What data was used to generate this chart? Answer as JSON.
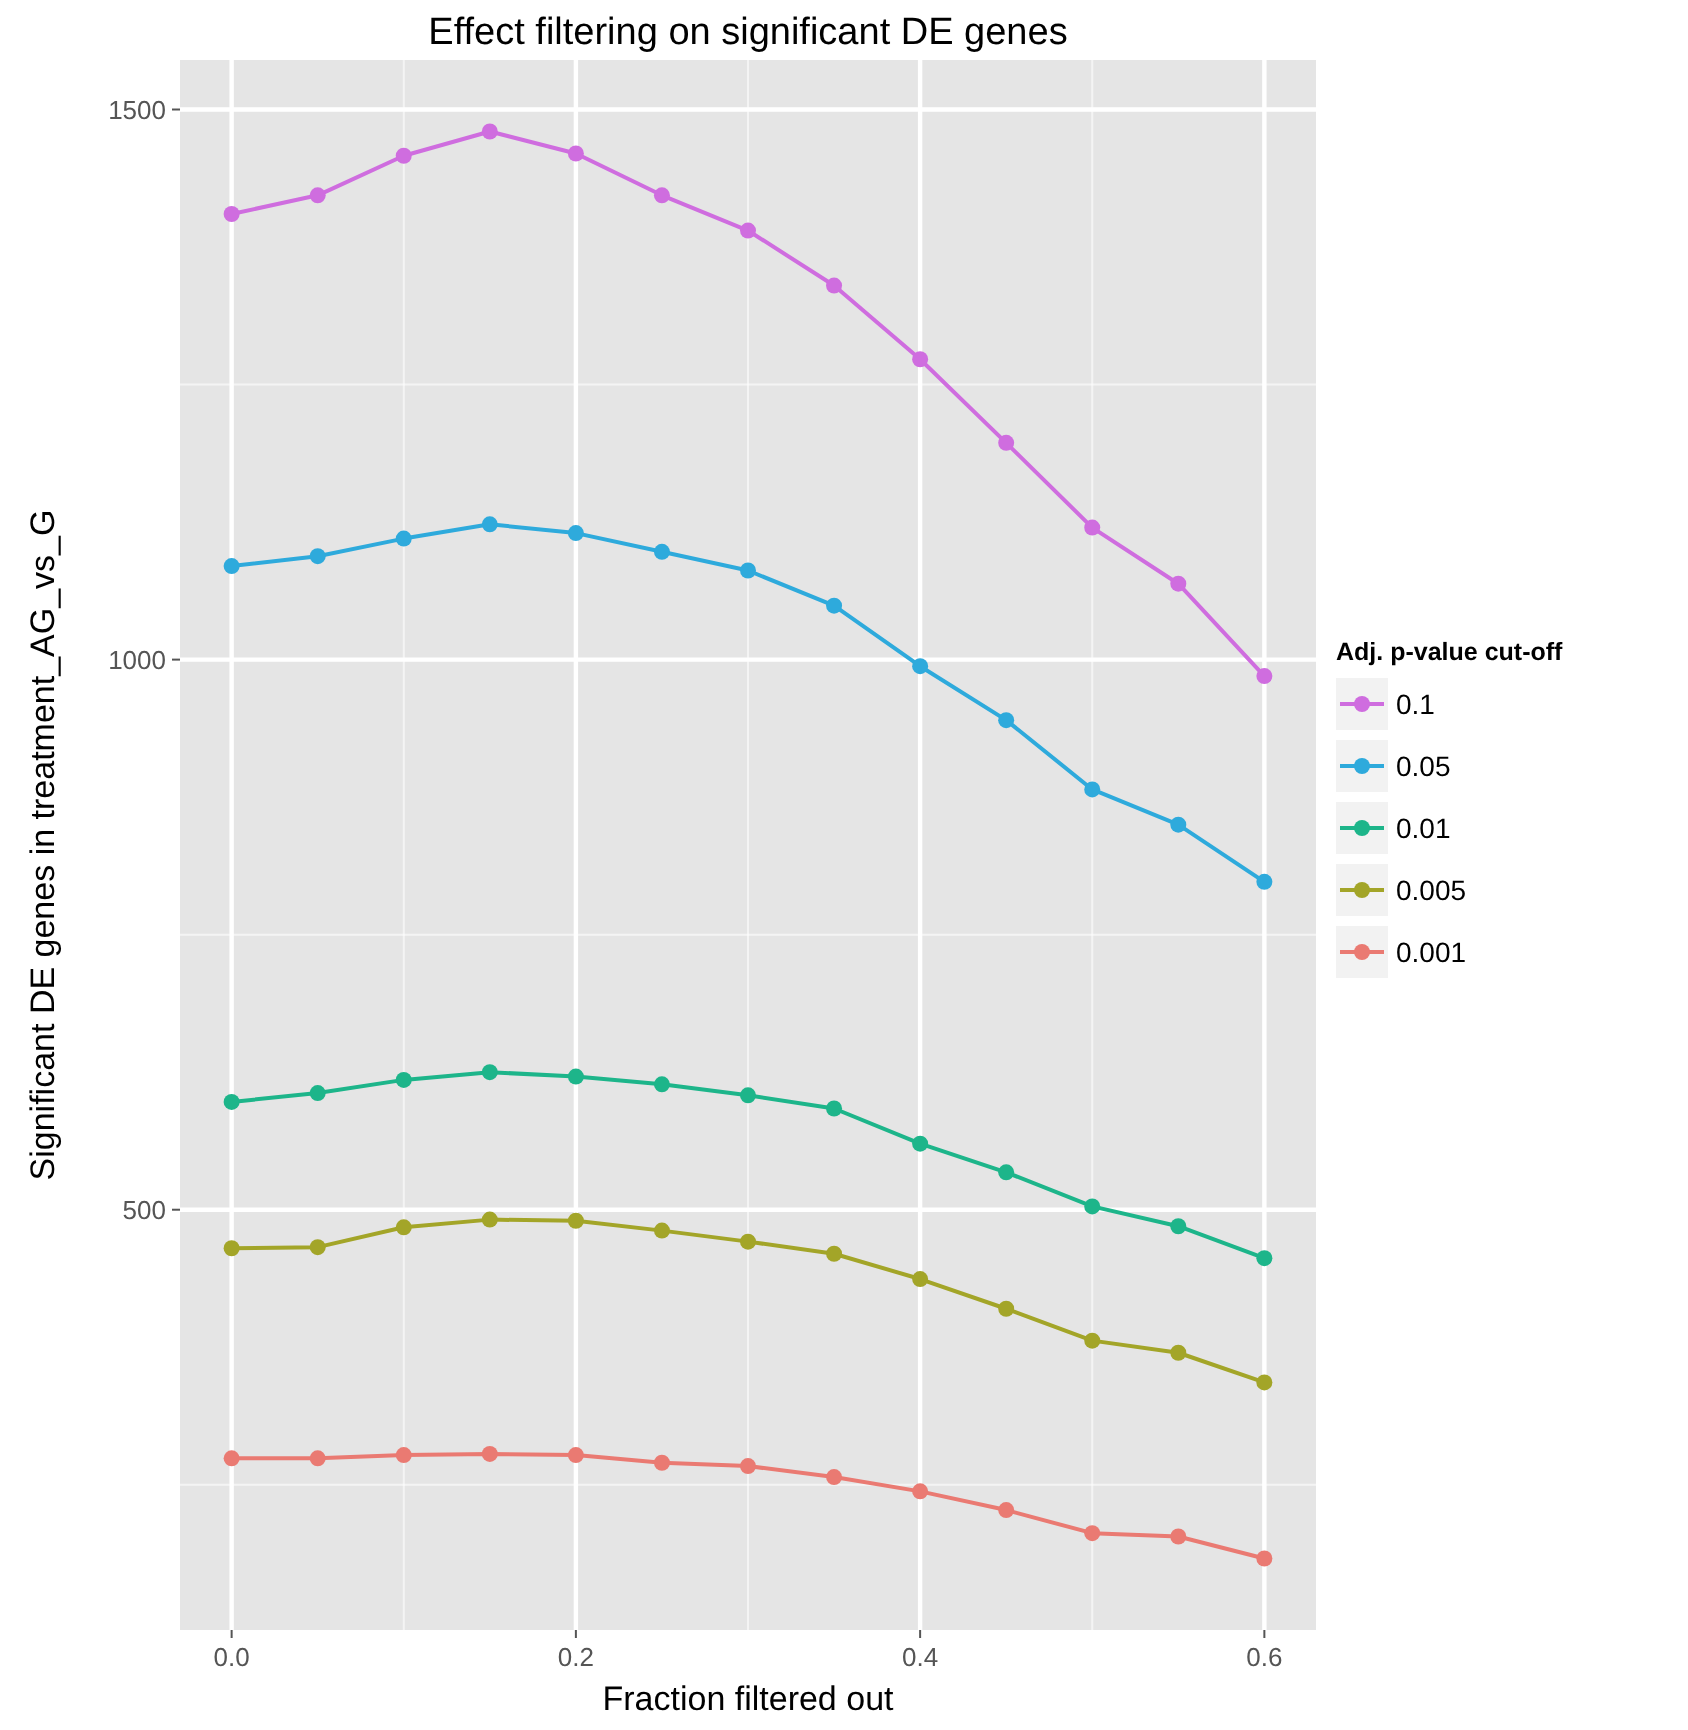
{
  "chart_data": {
    "type": "line",
    "title": "Effect filtering on significant DE genes",
    "xlabel": "Fraction filtered out",
    "ylabel": "Significant DE genes in treatment_AG_vs_G",
    "legend_title": "Adj. p-value cut-off",
    "x": [
      0,
      0.05,
      0.1,
      0.15,
      0.2,
      0.25,
      0.3,
      0.35,
      0.4,
      0.45,
      0.5,
      0.55,
      0.6
    ],
    "series": [
      {
        "name": "0.1",
        "color": "#cf6ddf",
        "values": [
          1405,
          1422,
          1458,
          1480,
          1460,
          1422,
          1390,
          1340,
          1273,
          1197,
          1120,
          1069,
          985
        ]
      },
      {
        "name": "0.05",
        "color": "#2eaadc",
        "values": [
          1085,
          1094,
          1110,
          1123,
          1115,
          1098,
          1081,
          1049,
          994,
          945,
          882,
          850,
          798
        ]
      },
      {
        "name": "0.01",
        "color": "#1db58a",
        "values": [
          598,
          606,
          618,
          625,
          621,
          614,
          604,
          592,
          560,
          534,
          503,
          485,
          456
        ]
      },
      {
        "name": "0.005",
        "color": "#a3a528",
        "values": [
          465,
          466,
          484,
          491,
          490,
          481,
          471,
          460,
          437,
          410,
          381,
          370,
          343
        ]
      },
      {
        "name": "0.001",
        "color": "#ea7a72",
        "values": [
          274,
          274,
          277,
          278,
          277,
          270,
          267,
          257,
          244,
          227,
          206,
          203,
          183
        ]
      }
    ],
    "xlim": [
      -0.03,
      0.63
    ],
    "ylim": [
      118,
      1545
    ],
    "xticks": [
      {
        "value": 0,
        "label": "0.0"
      },
      {
        "value": 0.1,
        "label": null
      },
      0.2,
      {
        "value": 0.3,
        "label": null
      },
      0.4,
      {
        "value": 0.5,
        "label": null
      },
      0.6
    ],
    "yticks": [
      {
        "value": 250,
        "label": null
      },
      500,
      {
        "value": 750,
        "label": null
      },
      1000,
      {
        "value": 1250,
        "label": null
      },
      1500
    ],
    "grid": true,
    "legend": "right",
    "marker": "circle",
    "line_style": "solid"
  }
}
